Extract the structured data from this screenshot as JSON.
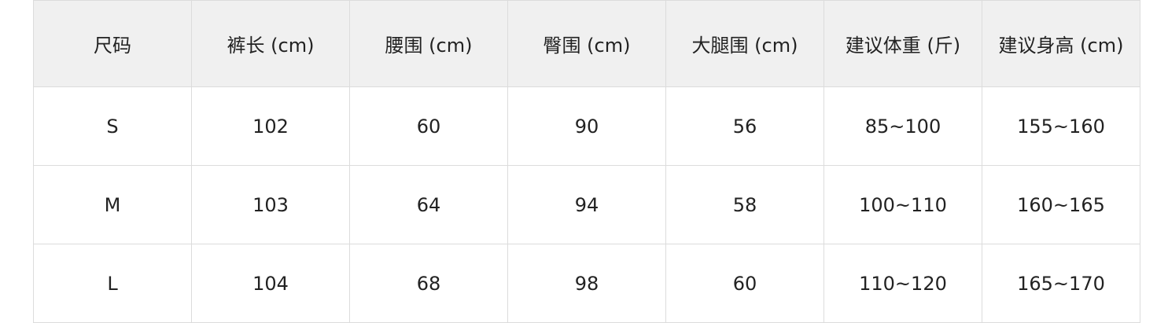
{
  "table": {
    "headers": [
      "尺码",
      "裤长 (cm)",
      "腰围 (cm)",
      "臀围 (cm)",
      "大腿围 (cm)",
      "建议体重 (斤)",
      "建议身高 (cm)"
    ],
    "rows": [
      [
        "S",
        "102",
        "60",
        "90",
        "56",
        "85~100",
        "155~160"
      ],
      [
        "M",
        "103",
        "64",
        "94",
        "58",
        "100~110",
        "160~165"
      ],
      [
        "L",
        "104",
        "68",
        "98",
        "60",
        "110~120",
        "165~170"
      ]
    ]
  }
}
